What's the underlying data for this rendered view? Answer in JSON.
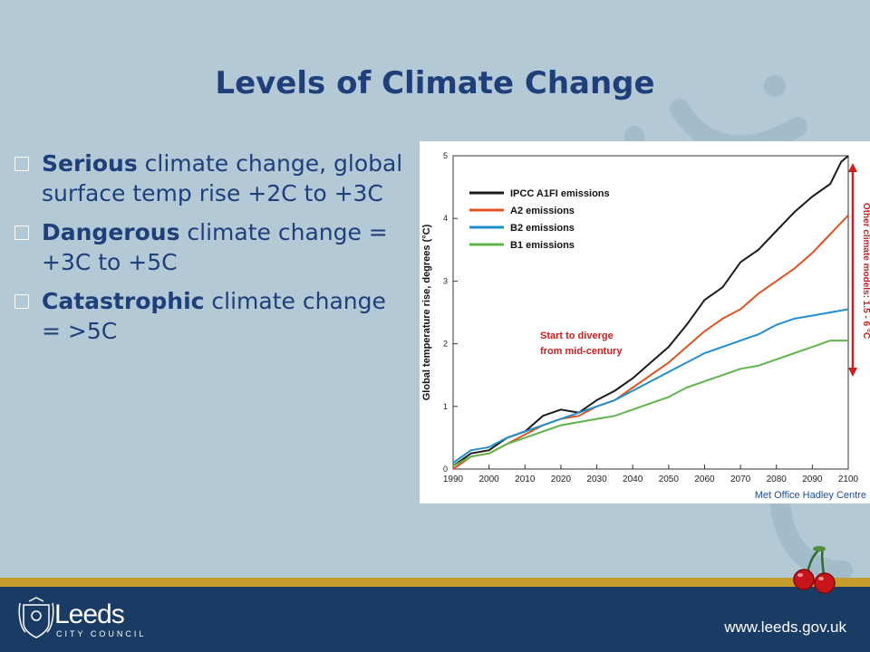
{
  "slide": {
    "title": "Levels of Climate Change",
    "bullets": [
      {
        "bold": "Serious",
        "rest": " climate change, global surface temp rise +2C to +3C"
      },
      {
        "bold": "Dangerous",
        "rest": " climate change = +3C to +5C"
      },
      {
        "bold": "Catastrophic",
        "rest": " climate change = >5C"
      }
    ]
  },
  "footer": {
    "logo_name": "Leeds",
    "logo_sub": "CITY COUNCIL",
    "website": "www.leeds.gov.uk"
  },
  "colors": {
    "background": "#b3c9d6",
    "title": "#1f3f7a",
    "footer_bar": "#1a3b63",
    "footer_gold": "#c69c2c"
  },
  "chart_data": {
    "type": "line",
    "ylabel": "Global temperature rise, degrees (°C)",
    "credit": "Met Office Hadley Centre",
    "annotation": "Start to diverge from mid-century",
    "annotation_lines": [
      "Start to diverge",
      "from mid-century"
    ],
    "range_label": "Other climate models: 1.5 - 6 °C",
    "xlim": [
      1990,
      2100
    ],
    "ylim": [
      0,
      5
    ],
    "x_ticks": [
      "1990",
      "2000",
      "2010",
      "2020",
      "2030",
      "2040",
      "2050",
      "2060",
      "2070",
      "2080",
      "2090",
      "2100"
    ],
    "y_ticks": [
      "0",
      "1",
      "2",
      "3",
      "4",
      "5"
    ],
    "range_arrow": [
      1.5,
      6
    ],
    "series": [
      {
        "name": "IPCC A1FI emissions",
        "color": "#1a1a1a",
        "x": [
          1990,
          1995,
          2000,
          2005,
          2010,
          2015,
          2020,
          2025,
          2030,
          2035,
          2040,
          2045,
          2050,
          2055,
          2060,
          2065,
          2070,
          2075,
          2080,
          2085,
          2090,
          2095,
          2098,
          2100
        ],
        "y": [
          0.05,
          0.25,
          0.3,
          0.5,
          0.6,
          0.85,
          0.95,
          0.9,
          1.1,
          1.25,
          1.45,
          1.7,
          1.95,
          2.3,
          2.7,
          2.9,
          3.3,
          3.5,
          3.8,
          4.1,
          4.35,
          4.55,
          4.9,
          5.0
        ]
      },
      {
        "name": "A2 emissions",
        "color": "#e0521f",
        "x": [
          1990,
          1995,
          2000,
          2005,
          2010,
          2015,
          2020,
          2025,
          2030,
          2035,
          2040,
          2045,
          2050,
          2055,
          2060,
          2065,
          2070,
          2075,
          2080,
          2085,
          2090,
          2095,
          2100
        ],
        "y": [
          0.0,
          0.2,
          0.25,
          0.4,
          0.55,
          0.7,
          0.8,
          0.85,
          1.0,
          1.1,
          1.3,
          1.5,
          1.7,
          1.95,
          2.2,
          2.4,
          2.55,
          2.8,
          3.0,
          3.2,
          3.45,
          3.75,
          4.05
        ]
      },
      {
        "name": "B2 emissions",
        "color": "#1f8fcf",
        "x": [
          1990,
          1995,
          2000,
          2005,
          2010,
          2015,
          2020,
          2025,
          2030,
          2035,
          2040,
          2045,
          2050,
          2055,
          2060,
          2065,
          2070,
          2075,
          2080,
          2085,
          2090,
          2095,
          2100
        ],
        "y": [
          0.1,
          0.3,
          0.35,
          0.5,
          0.6,
          0.7,
          0.8,
          0.9,
          1.0,
          1.1,
          1.25,
          1.4,
          1.55,
          1.7,
          1.85,
          1.95,
          2.05,
          2.15,
          2.3,
          2.4,
          2.45,
          2.5,
          2.55
        ]
      },
      {
        "name": "B1 emissions",
        "color": "#5fb54a",
        "x": [
          1990,
          1995,
          2000,
          2005,
          2010,
          2015,
          2020,
          2025,
          2030,
          2035,
          2040,
          2045,
          2050,
          2055,
          2060,
          2065,
          2070,
          2075,
          2080,
          2085,
          2090,
          2095,
          2100
        ],
        "y": [
          0.05,
          0.2,
          0.25,
          0.4,
          0.5,
          0.6,
          0.7,
          0.75,
          0.8,
          0.85,
          0.95,
          1.05,
          1.15,
          1.3,
          1.4,
          1.5,
          1.6,
          1.65,
          1.75,
          1.85,
          1.95,
          2.05,
          2.05
        ]
      }
    ]
  }
}
